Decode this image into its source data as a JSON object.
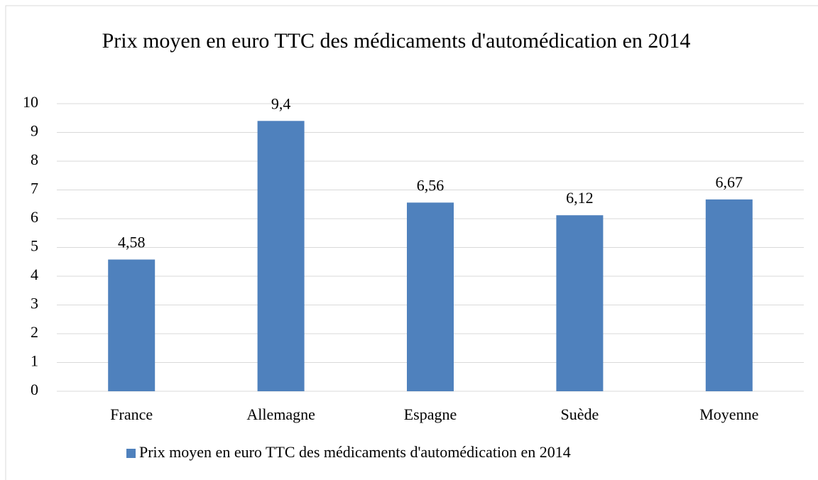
{
  "chart_data": {
    "type": "bar",
    "title": "Prix moyen en euro TTC des médicaments d'automédication en 2014",
    "categories": [
      "France",
      "Allemagne",
      "Espagne",
      "Suède",
      "Moyenne"
    ],
    "series": [
      {
        "name": "Prix moyen en euro TTC des médicaments d'automédication en 2014",
        "color": "#4f81bd",
        "values": [
          4.58,
          9.4,
          6.56,
          6.12,
          6.67
        ],
        "value_labels": [
          "4,58",
          "9,4",
          "6,56",
          "6,12",
          "6,67"
        ]
      }
    ],
    "ylim": [
      0,
      10
    ],
    "yticks": [
      0,
      1,
      2,
      3,
      4,
      5,
      6,
      7,
      8,
      9,
      10
    ],
    "grid": true,
    "legend": "bottom"
  }
}
